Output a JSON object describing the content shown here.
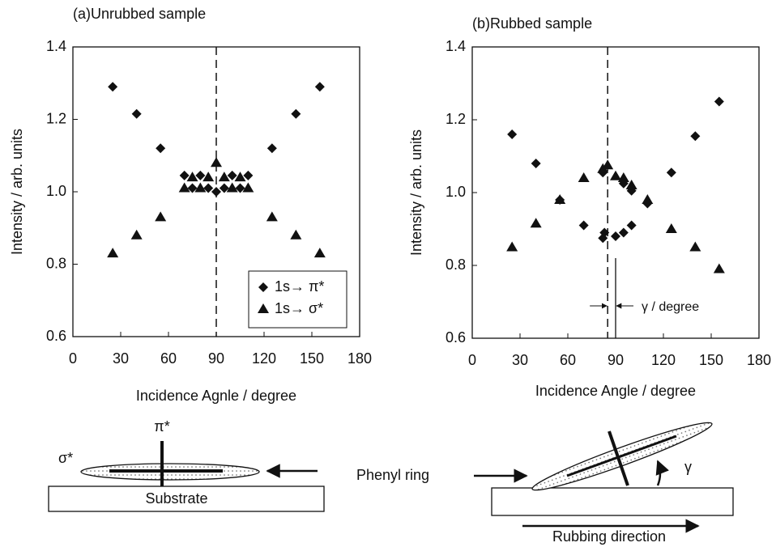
{
  "chart_data": [
    {
      "type": "scatter",
      "title": "(a)Unrubbed sample",
      "xlabel": "Incidence Agnle / degree",
      "ylabel": "Intensity / arb. units",
      "xlim": [
        0,
        180
      ],
      "xticks": [
        0,
        30,
        60,
        90,
        120,
        150,
        180
      ],
      "ylim": [
        0.6,
        1.4
      ],
      "yticks": [
        0.6,
        0.8,
        {
          "value": 1,
          "label": "1.0"
        },
        1.2,
        1.4
      ],
      "vline": 90,
      "legend": "lower right",
      "series": [
        {
          "name": "1s→ π*",
          "marker": "diamond",
          "color": "#111",
          "x": [
            25,
            40,
            55,
            70,
            75,
            80,
            85,
            90,
            95,
            100,
            105,
            110,
            125,
            140,
            155
          ],
          "values": [
            1.29,
            1.215,
            1.12,
            1.045,
            1.01,
            1.045,
            1.01,
            1.0,
            1.01,
            1.045,
            1.01,
            1.045,
            1.12,
            1.215,
            1.29
          ]
        },
        {
          "name": "1s→ σ*",
          "marker": "triangle",
          "color": "#111",
          "x": [
            25,
            40,
            55,
            70,
            75,
            80,
            85,
            90,
            95,
            100,
            105,
            110,
            125,
            140,
            155
          ],
          "values": [
            0.83,
            0.88,
            0.93,
            1.01,
            1.04,
            1.01,
            1.04,
            1.08,
            1.04,
            1.01,
            1.04,
            1.01,
            0.93,
            0.88,
            0.83
          ]
        }
      ]
    },
    {
      "type": "scatter",
      "title": "(b)Rubbed sample",
      "xlabel": "Incidence Angle / degree",
      "ylabel": "Intensity / arb. units",
      "xlim": [
        0,
        180
      ],
      "xticks": [
        0,
        30,
        60,
        90,
        120,
        150,
        180
      ],
      "ylim": [
        0.6,
        1.4
      ],
      "yticks": [
        0.6,
        0.8,
        {
          "value": 1,
          "label": "1.0"
        },
        1.2,
        1.4
      ],
      "vline": 85,
      "ref_line": {
        "x": 90,
        "top": 0.82,
        "label": "γ  / degree"
      },
      "series": [
        {
          "marker": "diamond",
          "color": "#111",
          "x": [
            25,
            40,
            55,
            70,
            82,
            82,
            83,
            90,
            95,
            95,
            100,
            100,
            110,
            125,
            140,
            155
          ],
          "values": [
            1.16,
            1.08,
            0.98,
            0.91,
            1.055,
            0.875,
            0.89,
            0.88,
            0.89,
            1.025,
            0.91,
            1.005,
            0.97,
            1.055,
            1.155,
            1.25
          ]
        },
        {
          "marker": "triangle",
          "color": "#111",
          "x": [
            25,
            40,
            55,
            70,
            82,
            85,
            90,
            95,
            100,
            110,
            125,
            140,
            155
          ],
          "values": [
            0.85,
            0.915,
            0.98,
            1.04,
            1.065,
            1.075,
            1.045,
            1.04,
            1.02,
            0.98,
            0.9,
            0.85,
            0.79
          ]
        }
      ]
    }
  ],
  "diagram": {
    "sigma": "σ*",
    "pi": "π*",
    "substrate_left": "Substrate",
    "phenyl_ring": "Phenyl ring",
    "substrate_right": "Substrate",
    "gamma": "γ",
    "rubbing": "Rubbing direction"
  }
}
